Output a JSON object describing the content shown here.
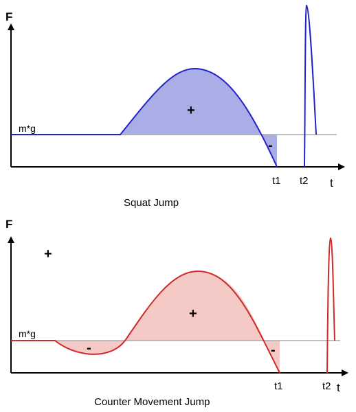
{
  "squat_jump": {
    "caption": "Squat Jump",
    "y_axis_label": "F",
    "x_axis_label": "t",
    "baseline_label": "m*g",
    "t1_label": "t1",
    "t2_label": "t2",
    "positive_sign": "+",
    "negative_sign": "-",
    "curve_color": "#2323c8",
    "fill_color": "#a9aee6"
  },
  "counter_movement_jump": {
    "caption": "Counter Movement Jump",
    "y_axis_label": "F",
    "x_axis_label": "t",
    "baseline_label": "m*g",
    "t1_label": "t1",
    "t2_label": "t2",
    "positive_sign_outside": "+",
    "positive_sign": "+",
    "negative_sign_dip": "-",
    "negative_sign_end": "-",
    "curve_color": "#cc2a2a",
    "fill_color": "#f4c9c6"
  }
}
